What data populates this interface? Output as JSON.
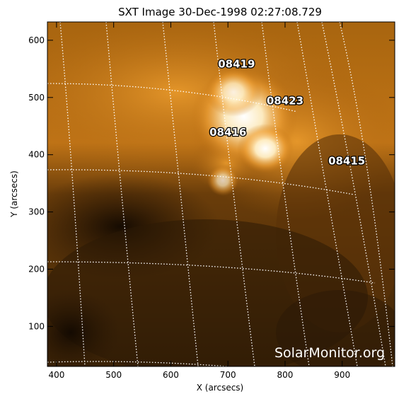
{
  "chart_data": {
    "type": "image",
    "title": "SXT Image 30-Dec-1998 02:27:08.729",
    "xlabel": "X (arcsecs)",
    "ylabel": "Y (arcsecs)",
    "xlim": [
      384,
      992
    ],
    "ylim": [
      30,
      632
    ],
    "xticks": [
      400,
      500,
      600,
      700,
      800,
      900
    ],
    "yticks": [
      100,
      200,
      300,
      400,
      500,
      600
    ],
    "colormap": "solar-orange (black to orange to white)",
    "grid": "heliographic lat/lon, dotted white",
    "active_regions": [
      {
        "label": "08419",
        "x": 715,
        "y": 552
      },
      {
        "label": "08423",
        "x": 800,
        "y": 488
      },
      {
        "label": "08416",
        "x": 700,
        "y": 433
      },
      {
        "label": "08415",
        "x": 908,
        "y": 383
      }
    ],
    "watermark": "SolarMonitor.org"
  },
  "colors": {
    "dark": "#1a0e02",
    "mid": "#b06a10",
    "bright": "#ffffff",
    "grid": "#ffffff"
  }
}
